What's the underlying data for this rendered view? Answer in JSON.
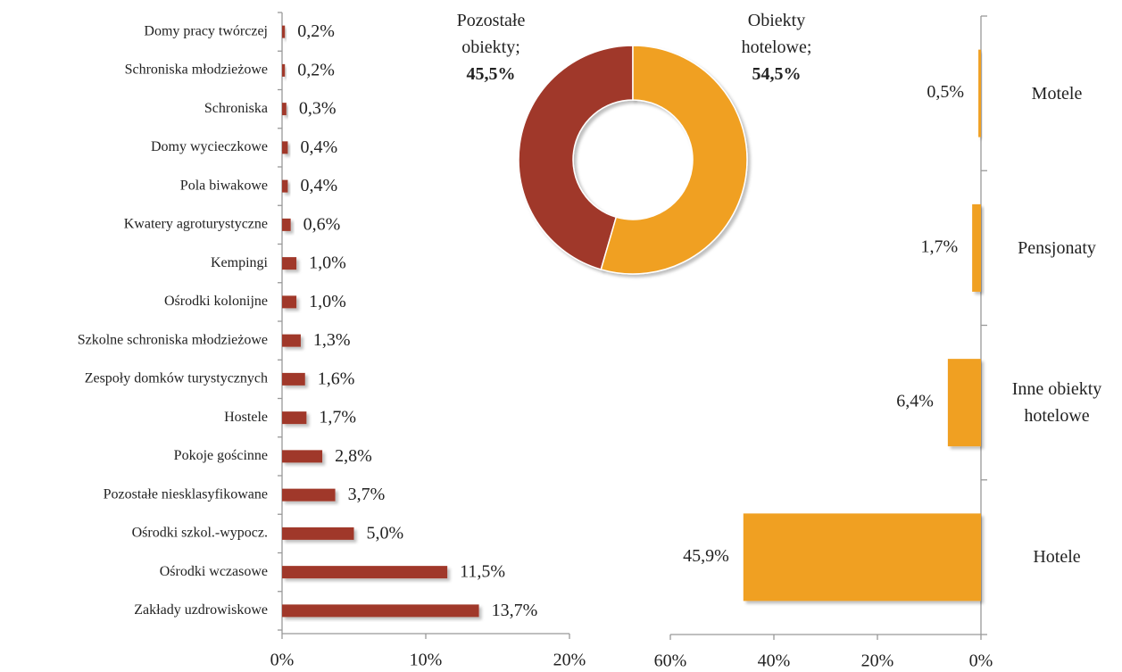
{
  "chart_data": [
    {
      "type": "bar",
      "orientation": "horizontal",
      "color": "#a0392a",
      "categories": [
        "Domy pracy twórczej",
        "Schroniska młodzieżowe",
        "Schroniska",
        "Domy wycieczkowe",
        "Pola biwakowe",
        "Kwatery agroturystyczne",
        "Kempingi",
        "Ośrodki kolonijne",
        "Szkolne schroniska młodzieżowe",
        "Zespoły domków turystycznych",
        "Hostele",
        "Pokoje gościnne",
        "Pozostałe niesklasyfikowane",
        "Ośrodki szkol.-wypocz.",
        "Ośrodki wczasowe",
        "Zakłady uzdrowiskowe"
      ],
      "values": [
        0.2,
        0.2,
        0.3,
        0.4,
        0.4,
        0.6,
        1.0,
        1.0,
        1.3,
        1.6,
        1.7,
        2.8,
        3.7,
        5.0,
        11.5,
        13.7
      ],
      "value_labels": [
        "0,2%",
        "0,2%",
        "0,3%",
        "0,4%",
        "0,4%",
        "0,6%",
        "1,0%",
        "1,0%",
        "1,3%",
        "1,6%",
        "1,7%",
        "2,8%",
        "3,7%",
        "5,0%",
        "11,5%",
        "13,7%"
      ],
      "xlim": [
        0,
        20
      ],
      "xticks": [
        {
          "value": 0,
          "label": "0%"
        },
        {
          "value": 10,
          "label": "10%"
        },
        {
          "value": 20,
          "label": "20%"
        }
      ]
    },
    {
      "type": "donut",
      "categories": [
        "Pozostałe obiekty;",
        "Obiekty hotelowe;"
      ],
      "values": [
        45.5,
        54.5
      ],
      "value_labels": [
        "45,5%",
        "54,5%"
      ],
      "colors": [
        "#a0392a",
        "#f0a020"
      ]
    },
    {
      "type": "bar",
      "orientation": "horizontal",
      "color": "#f0a020",
      "categories": [
        "Motele",
        "Pensjonaty",
        "Inne obiekty hotelowe",
        "Hotele"
      ],
      "values": [
        0.5,
        1.7,
        6.4,
        45.9
      ],
      "value_labels": [
        "0,5%",
        "1,7%",
        "6,4%",
        "45,9%"
      ],
      "xlim": [
        60,
        0
      ],
      "xticks": [
        {
          "value": 60,
          "label": "60%"
        },
        {
          "value": 40,
          "label": "40%"
        },
        {
          "value": 20,
          "label": "20%"
        },
        {
          "value": 0,
          "label": "0%"
        }
      ]
    }
  ]
}
